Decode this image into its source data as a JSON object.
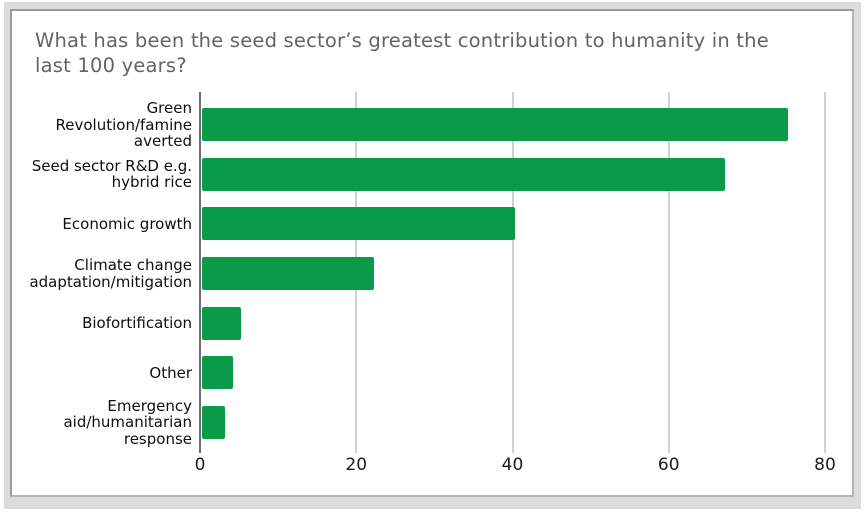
{
  "title_lines": [
    "What has been the seed sector’s greatest contribution to humanity in the",
    "last 100 years?"
  ],
  "colors": {
    "bar": "#0a9b48",
    "title_text": "#646464",
    "label_text": "#0f0f0f",
    "gridline": "#cfcfcf",
    "baseline": "#6e6e6e",
    "frame_band": "#dcdcdc",
    "panel_border": "#9b9b9b",
    "background": "#ffffff"
  },
  "chart_data": {
    "type": "bar",
    "orientation": "horizontal",
    "title": "What has been the seed sector’s greatest contribution to humanity in the last 100 years?",
    "categories": [
      "Green Revolution/famine averted",
      "Seed sector R&D e.g. hybrid rice",
      "Economic growth",
      "Climate change adaptation/mitigation",
      "Biofortification",
      "Other",
      "Emergency aid/humanitarian response"
    ],
    "category_lines": [
      [
        "Green",
        "Revolution/famine",
        "averted"
      ],
      [
        "Seed sector R&D e.g.",
        "hybrid rice"
      ],
      [
        "Economic growth"
      ],
      [
        "Climate change",
        "adaptation/mitigation"
      ],
      [
        "Biofortification"
      ],
      [
        "Other"
      ],
      [
        "Emergency",
        "aid/humanitarian",
        "response"
      ]
    ],
    "values": [
      75,
      67,
      40,
      22,
      5,
      4,
      3
    ],
    "xlabel": "",
    "ylabel": "",
    "xlim": [
      0,
      82
    ],
    "x_ticks": [
      0,
      20,
      40,
      60,
      80
    ],
    "grid": true,
    "legend": "none"
  }
}
